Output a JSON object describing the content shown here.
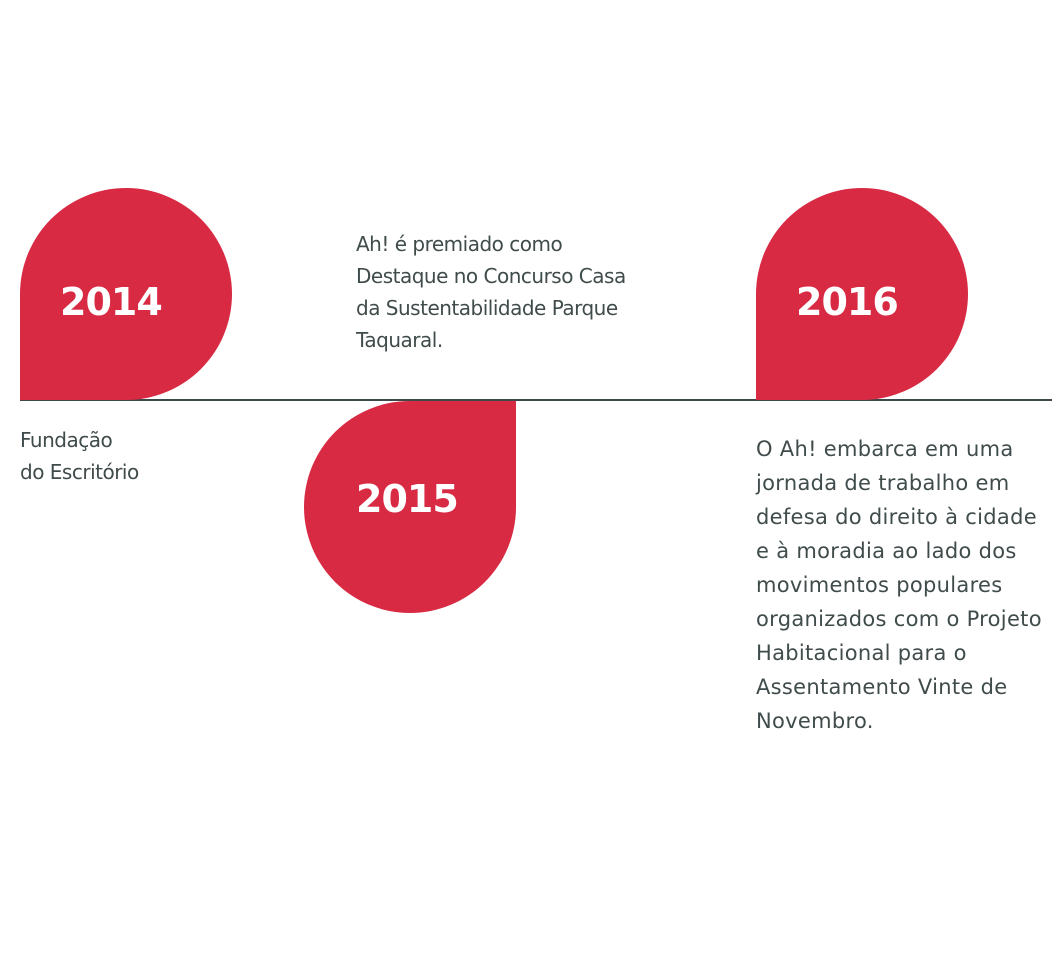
{
  "colors": {
    "accent": "#d92a44",
    "text": "#404b4b",
    "line": "#3f4848"
  },
  "timeline": [
    {
      "year": "2014",
      "caption_lines": [
        "Fundação",
        "do Escritório"
      ]
    },
    {
      "year": "2015",
      "caption_lines": [
        "Ah! é premiado como",
        "Destaque no Concurso Casa",
        "da Sustentabilidade Parque",
        "Taquaral."
      ]
    },
    {
      "year": "2016",
      "caption_lines": [
        "O Ah! embarca em uma",
        "jornada de trabalho em",
        "defesa do direito à cidade",
        "e à moradia ao lado dos",
        "movimentos populares",
        "organizados com o Projeto",
        "Habitacional para o",
        "Assentamento Vinte de",
        "Novembro."
      ]
    }
  ]
}
